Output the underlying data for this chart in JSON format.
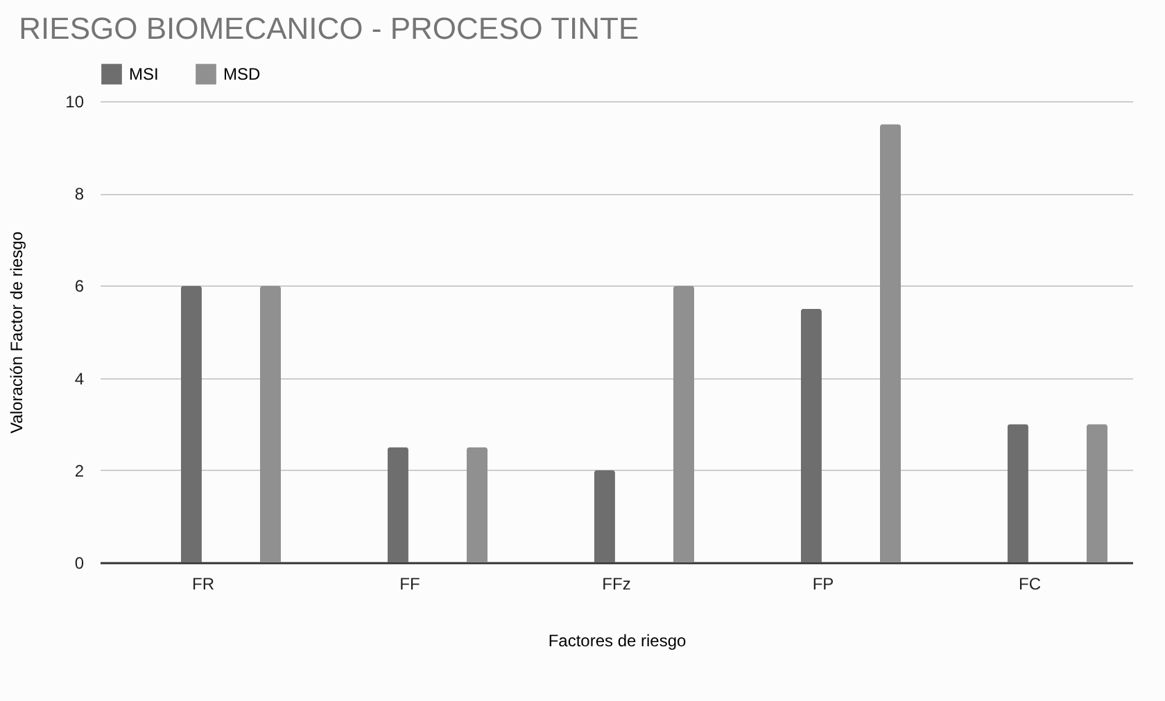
{
  "chart_data": {
    "type": "bar",
    "title": "RIESGO BIOMECANICO - PROCESO TINTE",
    "xlabel": "Factores de riesgo",
    "ylabel": "Valoración Factor de riesgo",
    "categories": [
      "FR",
      "FF",
      "FFz",
      "FP",
      "FC"
    ],
    "series": [
      {
        "name": "MSI",
        "color": "#6e6e6e",
        "values": [
          6,
          2.5,
          2,
          5.5,
          3
        ]
      },
      {
        "name": "MSD",
        "color": "#909090",
        "values": [
          6,
          2.5,
          6,
          9.5,
          3
        ]
      }
    ],
    "ylim": [
      0,
      10
    ],
    "yticks": [
      0,
      2,
      4,
      6,
      8,
      10
    ],
    "grid": "y",
    "legend": "top"
  }
}
